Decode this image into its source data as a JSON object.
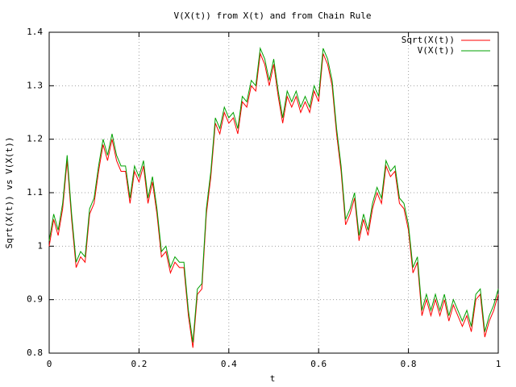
{
  "chart_data": {
    "type": "line",
    "title": "V(X(t)) from X(t) and from Chain Rule",
    "xlabel": "t",
    "ylabel": "Sqrt(X(t)) vs V(X(t))",
    "x": [
      0,
      0.01,
      0.02,
      0.03,
      0.04,
      0.05,
      0.06,
      0.07,
      0.08,
      0.09,
      0.1,
      0.11,
      0.12,
      0.13,
      0.14,
      0.15,
      0.16,
      0.17,
      0.18,
      0.19,
      0.2,
      0.21,
      0.22,
      0.23,
      0.24,
      0.25,
      0.26,
      0.27,
      0.28,
      0.29,
      0.3,
      0.31,
      0.32,
      0.33,
      0.34,
      0.35,
      0.36,
      0.37,
      0.38,
      0.39,
      0.4,
      0.41,
      0.42,
      0.43,
      0.44,
      0.45,
      0.46,
      0.47,
      0.48,
      0.49,
      0.5,
      0.51,
      0.52,
      0.53,
      0.54,
      0.55,
      0.56,
      0.57,
      0.58,
      0.59,
      0.6,
      0.61,
      0.62,
      0.63,
      0.64,
      0.65,
      0.66,
      0.67,
      0.68,
      0.69,
      0.7,
      0.71,
      0.72,
      0.73,
      0.74,
      0.75,
      0.76,
      0.77,
      0.78,
      0.79,
      0.8,
      0.81,
      0.82,
      0.83,
      0.84,
      0.85,
      0.86,
      0.87,
      0.88,
      0.89,
      0.9,
      0.91,
      0.92,
      0.93,
      0.94,
      0.95,
      0.96,
      0.97,
      0.98,
      0.99,
      1
    ],
    "series": [
      {
        "name": "Sqrt(X(t))",
        "color": "#ff0000",
        "values": [
          1.0,
          1.05,
          1.02,
          1.07,
          1.16,
          1.05,
          0.96,
          0.98,
          0.97,
          1.06,
          1.08,
          1.14,
          1.19,
          1.16,
          1.2,
          1.16,
          1.14,
          1.14,
          1.08,
          1.14,
          1.12,
          1.15,
          1.08,
          1.12,
          1.06,
          0.98,
          0.99,
          0.95,
          0.97,
          0.96,
          0.96,
          0.87,
          0.81,
          0.91,
          0.92,
          1.06,
          1.13,
          1.23,
          1.21,
          1.25,
          1.23,
          1.24,
          1.21,
          1.27,
          1.26,
          1.3,
          1.29,
          1.36,
          1.34,
          1.3,
          1.34,
          1.28,
          1.23,
          1.28,
          1.26,
          1.28,
          1.25,
          1.27,
          1.25,
          1.29,
          1.27,
          1.36,
          1.34,
          1.3,
          1.21,
          1.14,
          1.04,
          1.06,
          1.09,
          1.01,
          1.05,
          1.02,
          1.07,
          1.1,
          1.08,
          1.15,
          1.13,
          1.14,
          1.08,
          1.07,
          1.03,
          0.95,
          0.97,
          0.87,
          0.9,
          0.87,
          0.9,
          0.87,
          0.9,
          0.86,
          0.89,
          0.87,
          0.85,
          0.87,
          0.84,
          0.9,
          0.91,
          0.83,
          0.86,
          0.88,
          0.91
        ]
      },
      {
        "name": "V(X(t))",
        "color": "#00a000",
        "values": [
          1.01,
          1.06,
          1.03,
          1.08,
          1.17,
          1.06,
          0.97,
          0.99,
          0.98,
          1.07,
          1.09,
          1.15,
          1.2,
          1.17,
          1.21,
          1.17,
          1.15,
          1.15,
          1.09,
          1.15,
          1.13,
          1.16,
          1.09,
          1.13,
          1.07,
          0.99,
          1.0,
          0.96,
          0.98,
          0.97,
          0.97,
          0.88,
          0.82,
          0.92,
          0.93,
          1.07,
          1.14,
          1.24,
          1.22,
          1.26,
          1.24,
          1.25,
          1.22,
          1.28,
          1.27,
          1.31,
          1.3,
          1.37,
          1.35,
          1.31,
          1.35,
          1.29,
          1.24,
          1.29,
          1.27,
          1.29,
          1.26,
          1.28,
          1.26,
          1.3,
          1.28,
          1.37,
          1.35,
          1.31,
          1.22,
          1.15,
          1.05,
          1.07,
          1.1,
          1.02,
          1.06,
          1.03,
          1.08,
          1.11,
          1.09,
          1.16,
          1.14,
          1.15,
          1.09,
          1.08,
          1.04,
          0.96,
          0.98,
          0.88,
          0.91,
          0.88,
          0.91,
          0.88,
          0.91,
          0.87,
          0.9,
          0.88,
          0.86,
          0.88,
          0.85,
          0.91,
          0.92,
          0.84,
          0.87,
          0.89,
          0.92
        ]
      }
    ],
    "xlim": [
      0,
      1
    ],
    "ylim": [
      0.8,
      1.4
    ],
    "xticks": [
      0,
      0.2,
      0.4,
      0.6,
      0.8,
      1
    ],
    "yticks": [
      0.8,
      0.9,
      1,
      1.1,
      1.2,
      1.3,
      1.4
    ],
    "grid": true,
    "legend": "top right"
  }
}
